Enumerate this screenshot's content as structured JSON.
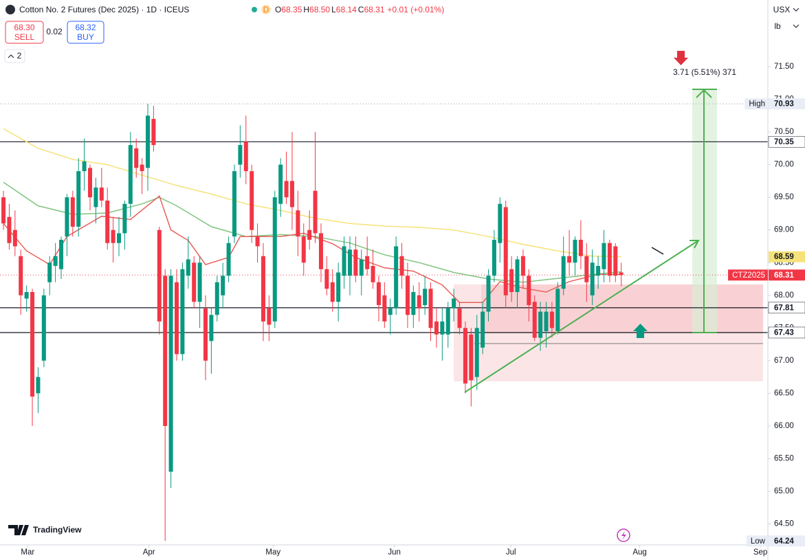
{
  "header": {
    "title": "Cotton No. 2 Futures (Dec 2025) · 1D · ICEUS",
    "status": "D",
    "ohlc": [
      {
        "key": "O",
        "value": "68.35"
      },
      {
        "key": "H",
        "value": "68.50"
      },
      {
        "key": "L",
        "value": "68.14"
      },
      {
        "key": "C",
        "value": "68.31"
      }
    ],
    "change": "+0.01 (+0.01%)",
    "sell": {
      "price": "68.30",
      "label": "SELL"
    },
    "spread": "0.02",
    "buy": {
      "price": "68.32",
      "label": "BUY"
    },
    "layers": "2",
    "currency": "USX",
    "unit": "lb",
    "brand": "TradingView"
  },
  "chart_data": {
    "type": "candlestick",
    "up_color": "#089981",
    "down_color": "#f23645",
    "series": {
      "open": [
        69.5,
        69.2,
        69.0,
        68.6,
        67.95,
        68.05,
        66.5,
        67.0,
        68.2,
        68.45,
        68.4,
        68.9,
        69.5,
        69.05,
        69.9,
        69.95,
        69.35,
        69.65,
        69.45,
        69.0,
        68.8,
        68.95,
        69.4,
        70.25,
        70.0,
        69.95,
        70.7,
        69.0,
        68.3,
        65.3,
        68.2,
        67.1,
        68.3,
        68.5,
        67.9,
        67.8,
        67.3,
        67.7,
        68.0,
        68.3,
        68.9,
        70.0,
        70.35,
        69.9,
        68.9,
        68.6,
        67.8,
        67.6,
        69.4,
        69.75,
        69.75,
        69.3,
        68.9,
        69.0,
        69.6,
        68.95,
        68.4,
        68.2,
        67.9,
        68.3,
        68.3,
        68.7,
        68.3,
        68.6,
        68.45,
        68.2,
        68.0,
        67.7,
        67.8,
        68.6,
        68.3,
        67.7,
        68.0,
        67.85,
        68.1,
        67.6,
        67.4,
        67.4,
        67.8,
        67.8,
        67.5,
        67.4,
        66.75,
        67.2,
        67.75,
        68.3,
        68.8,
        69.35,
        68.4,
        68.05,
        68.6,
        68.3,
        67.9,
        67.35,
        67.45,
        67.75,
        67.45,
        68.1,
        68.6,
        68.5,
        68.85,
        68.6,
        68.0,
        68.3,
        68.4,
        68.8,
        68.75,
        68.35
      ],
      "high": [
        69.6,
        69.4,
        69.3,
        68.7,
        68.15,
        68.1,
        66.9,
        68.1,
        68.6,
        68.8,
        68.9,
        69.55,
        69.6,
        70.1,
        70.4,
        70.0,
        69.8,
        69.95,
        69.65,
        69.2,
        69.2,
        69.45,
        70.5,
        70.4,
        70.1,
        70.93,
        70.9,
        69.05,
        68.4,
        68.4,
        68.4,
        68.5,
        68.9,
        68.6,
        68.6,
        68.0,
        67.8,
        68.3,
        68.5,
        68.9,
        70.0,
        70.6,
        70.75,
        70.0,
        69.1,
        68.8,
        68.0,
        69.6,
        70.1,
        70.2,
        70.5,
        69.6,
        69.1,
        69.3,
        70.5,
        69.1,
        68.6,
        68.4,
        68.5,
        68.9,
        68.9,
        68.9,
        68.7,
        68.9,
        68.7,
        68.3,
        68.2,
        67.95,
        68.9,
        68.8,
        68.5,
        68.15,
        68.2,
        68.3,
        68.2,
        67.8,
        67.8,
        67.9,
        68.1,
        67.9,
        67.6,
        67.5,
        67.7,
        67.9,
        68.4,
        69.0,
        69.5,
        69.45,
        68.6,
        68.6,
        68.7,
        68.4,
        68.0,
        67.9,
        67.9,
        67.9,
        68.2,
        68.9,
        69.0,
        68.9,
        69.15,
        68.8,
        68.7,
        68.6,
        69.0,
        68.85,
        68.8,
        68.5
      ],
      "low": [
        69.0,
        68.7,
        68.6,
        67.7,
        67.75,
        66.0,
        66.2,
        66.9,
        68.0,
        68.2,
        68.25,
        68.6,
        68.9,
        68.9,
        69.6,
        69.3,
        69.1,
        69.35,
        68.7,
        68.5,
        68.6,
        68.7,
        69.2,
        69.8,
        69.55,
        69.6,
        70.2,
        67.4,
        64.24,
        65.05,
        67.0,
        67.0,
        68.1,
        67.8,
        67.5,
        66.7,
        66.8,
        67.6,
        67.8,
        68.2,
        68.8,
        69.8,
        69.7,
        68.8,
        68.5,
        67.3,
        67.3,
        67.5,
        69.2,
        69.4,
        69.0,
        68.6,
        68.3,
        68.7,
        68.8,
        68.2,
        68.0,
        67.75,
        67.6,
        68.1,
        68.0,
        68.2,
        68.0,
        68.3,
        68.1,
        67.6,
        67.5,
        67.4,
        67.7,
        68.1,
        67.5,
        67.5,
        67.6,
        67.7,
        67.3,
        67.2,
        67.0,
        67.2,
        67.6,
        67.4,
        66.5,
        66.3,
        66.55,
        67.1,
        67.6,
        68.2,
        68.5,
        67.8,
        67.9,
        67.8,
        68.1,
        67.6,
        67.3,
        67.15,
        67.2,
        67.35,
        67.4,
        68.0,
        68.3,
        68.3,
        68.4,
        67.9,
        67.85,
        68.1,
        68.2,
        68.2,
        68.2,
        68.14
      ],
      "close": [
        69.1,
        68.8,
        68.75,
        68.0,
        68.05,
        66.45,
        66.75,
        68.0,
        68.5,
        68.6,
        68.85,
        69.5,
        69.05,
        69.9,
        70.05,
        69.5,
        69.65,
        69.45,
        68.8,
        68.8,
        68.95,
        69.4,
        70.3,
        69.95,
        69.9,
        70.75,
        70.3,
        67.6,
        66.0,
        68.3,
        67.1,
        68.4,
        68.55,
        67.9,
        68.5,
        67.0,
        67.7,
        68.2,
        68.3,
        68.8,
        69.9,
        70.3,
        69.9,
        69.0,
        68.75,
        67.6,
        67.55,
        69.5,
        70.0,
        69.5,
        69.35,
        68.9,
        68.5,
        68.85,
        68.95,
        68.4,
        68.1,
        67.9,
        68.35,
        68.75,
        68.7,
        68.3,
        68.55,
        68.4,
        68.2,
        67.85,
        67.6,
        67.8,
        68.75,
        68.3,
        67.7,
        68.05,
        67.8,
        68.1,
        67.5,
        67.4,
        67.6,
        67.8,
        67.95,
        67.5,
        66.65,
        66.7,
        67.5,
        67.75,
        68.3,
        68.85,
        69.4,
        68.0,
        68.05,
        68.55,
        68.3,
        67.85,
        67.35,
        67.75,
        67.75,
        67.5,
        68.1,
        68.6,
        68.5,
        68.85,
        68.6,
        68.2,
        68.5,
        68.45,
        68.8,
        68.3,
        68.3,
        68.31
      ]
    },
    "moving_averages": [
      {
        "color": "#f5e27a",
        "x": [
          0,
          6,
          12,
          18,
          24,
          30,
          36,
          42,
          48,
          54,
          60,
          66,
          72,
          78,
          84,
          90,
          96,
          102,
          107
        ],
        "values": [
          70.55,
          70.25,
          70.08,
          70.0,
          69.84,
          69.68,
          69.55,
          69.4,
          69.3,
          69.18,
          69.1,
          69.06,
          69.04,
          69.0,
          68.9,
          68.78,
          68.68,
          68.6,
          68.59
        ]
      },
      {
        "color": "#7fc47f",
        "x": [
          0,
          6,
          12,
          18,
          24,
          27,
          30,
          36,
          42,
          48,
          54,
          60,
          66,
          72,
          78,
          84,
          90,
          96,
          102,
          107
        ],
        "values": [
          69.73,
          69.37,
          69.24,
          69.26,
          69.4,
          69.5,
          69.37,
          69.05,
          68.9,
          68.93,
          68.9,
          68.8,
          68.62,
          68.5,
          68.35,
          68.25,
          68.2,
          68.26,
          68.32,
          68.36
        ]
      },
      {
        "color": "#e8605a",
        "x": [
          0,
          4,
          8,
          11,
          17,
          22,
          27,
          29,
          32,
          35,
          39,
          41,
          45,
          48,
          52,
          57,
          61,
          66,
          71,
          76,
          79,
          83,
          86,
          90,
          94,
          98,
          103,
          107
        ],
        "values": [
          69.1,
          68.68,
          68.47,
          68.9,
          69.21,
          69.16,
          69.52,
          69.0,
          68.84,
          68.47,
          68.58,
          68.9,
          68.9,
          68.9,
          68.95,
          68.79,
          68.58,
          68.42,
          68.37,
          68.16,
          67.89,
          67.89,
          68.21,
          68.11,
          68.05,
          68.21,
          68.32,
          68.32
        ]
      }
    ],
    "ylim": [
      64.18,
      72.52
    ],
    "yticks": [
      {
        "value": 64.5,
        "label": "64.50"
      },
      {
        "value": 65,
        "label": "65.00"
      },
      {
        "value": 65.5,
        "label": "65.50"
      },
      {
        "value": 66,
        "label": "66.00"
      },
      {
        "value": 66.5,
        "label": "66.50"
      },
      {
        "value": 67,
        "label": "67.00"
      },
      {
        "value": 67.5,
        "label": "67.50"
      },
      {
        "value": 68,
        "label": "68.00"
      },
      {
        "value": 68.5,
        "label": "68.50"
      },
      {
        "value": 69,
        "label": "69.00"
      },
      {
        "value": 69.5,
        "label": "69.50"
      },
      {
        "value": 70,
        "label": "70.00"
      },
      {
        "value": 70.5,
        "label": "70.50"
      },
      {
        "value": 71,
        "label": "71.00"
      },
      {
        "value": 71.5,
        "label": "71.50"
      }
    ],
    "xlim": [
      -0.6,
      132.4
    ],
    "xticks": [
      {
        "value": 4.2,
        "label": "Mar"
      },
      {
        "value": 25.2,
        "label": "Apr"
      },
      {
        "value": 46.7,
        "label": "May"
      },
      {
        "value": 67.7,
        "label": "Jun"
      },
      {
        "value": 87.9,
        "label": "Jul"
      },
      {
        "value": 110.2,
        "label": "Aug"
      },
      {
        "value": 131.1,
        "label": "Sep"
      }
    ],
    "price_labels": [
      {
        "value": 70.93,
        "tag": "High",
        "style": "dotted",
        "color": "#999999",
        "bg": "#e9edf5",
        "fg": "#131722"
      },
      {
        "value": 70.35,
        "style": "solid",
        "color": "#131722",
        "bg": "#ffffff",
        "fg": "#131722"
      },
      {
        "value": 68.59,
        "bg": "#f5e27a",
        "fg": "#131722"
      },
      {
        "value": 68.31,
        "tag": "CTZ2025",
        "style": "dotted",
        "color": "#f23645",
        "bg": "#f23645",
        "fg": "#ffffff"
      },
      {
        "value": 67.81,
        "style": "solid",
        "color": "#131722",
        "bg": "#ffffff",
        "fg": "#131722"
      },
      {
        "value": 67.43,
        "style": "solid",
        "color": "#131722",
        "bg": "#ffffff",
        "fg": "#131722"
      },
      {
        "value": 64.24,
        "tag": "Low",
        "bg": "#e9edf5",
        "fg": "#131722"
      }
    ],
    "annotation": "3.71 (5.51%) 371"
  }
}
